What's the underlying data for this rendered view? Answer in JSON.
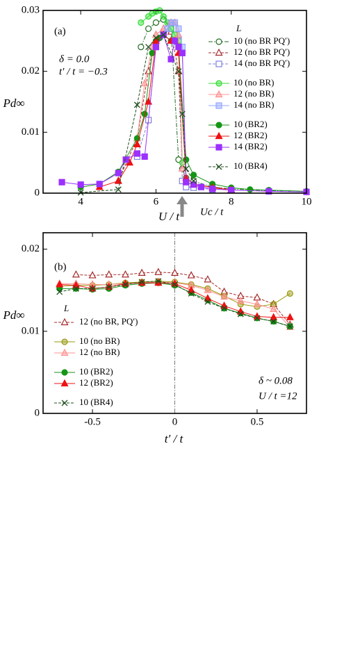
{
  "chart_data": [
    {
      "type": "line",
      "annotations": [
        "(a)",
        "δ = 0.0",
        "t′ / t = −0.3",
        "Uc / t"
      ],
      "x_label": "U / t",
      "y_label": "Pd∞",
      "legend_title": "L",
      "legend_position": "upper right",
      "xlim": [
        3,
        10
      ],
      "ylim": [
        0,
        0.03
      ],
      "xticks": [
        4,
        6,
        8,
        10
      ],
      "yticks": [
        0,
        0.01,
        0.02,
        0.03
      ],
      "series": [
        {
          "name": "10  (no BR PQ′)",
          "color": "#1f6b1f",
          "marker": "circle",
          "fill": "open",
          "dash": "dash-dot",
          "x": [
            5.6,
            5.8,
            6.0,
            6.2,
            6.4,
            6.6,
            6.7,
            6.8,
            7.0,
            7.5,
            8,
            9,
            10
          ],
          "values": [
            0.024,
            0.027,
            0.028,
            0.0285,
            0.027,
            0.0055,
            0.004,
            0.0025,
            0.002,
            0.001,
            0.0007,
            0.0004,
            0.0002
          ]
        },
        {
          "name": "12  (no BR PQ′)",
          "color": "#a52a2a",
          "marker": "triangle",
          "fill": "open",
          "dash": "dash",
          "x": [
            5,
            5.5,
            5.8,
            6.0,
            6.2,
            6.4,
            6.6,
            6.7,
            6.8,
            7.0,
            7.5,
            8
          ],
          "values": [
            0.002,
            0.009,
            0.02,
            0.026,
            0.027,
            0.0265,
            0.02,
            0.004,
            0.002,
            0.0015,
            0.001,
            0.0006
          ]
        },
        {
          "name": "14  (no BR PQ′)",
          "color": "#7f7fe0",
          "marker": "square",
          "fill": "open",
          "dash": "dash",
          "x": [
            5.5,
            5.8,
            6.0,
            6.2,
            6.4,
            6.5,
            6.6,
            6.7,
            6.8,
            7.0,
            7.5
          ],
          "values": [
            0.006,
            0.012,
            0.024,
            0.026,
            0.027,
            0.026,
            0.025,
            0.002,
            0.001,
            0.0009,
            0.0006
          ]
        },
        {
          "name": "10  (no BR)",
          "color": "#33dd33",
          "marker": "circle",
          "fill": "half",
          "dash": "solid",
          "x": [
            5.6,
            5.8,
            5.9,
            6.0,
            6.1,
            6.2,
            6.3,
            6.4,
            6.5,
            6.6,
            6.7
          ],
          "values": [
            0.028,
            0.029,
            0.0295,
            0.0298,
            0.03,
            0.029,
            0.028,
            0.027,
            0.026,
            0.025,
            0.005
          ]
        },
        {
          "name": "12  (no BR)",
          "color": "#ff9090",
          "marker": "triangle",
          "fill": "half",
          "dash": "solid",
          "x": [
            5.5,
            5.7,
            5.9,
            6.0,
            6.2,
            6.4,
            6.5,
            6.6,
            6.7
          ],
          "values": [
            0.009,
            0.018,
            0.024,
            0.026,
            0.027,
            0.028,
            0.028,
            0.026,
            0.004
          ]
        },
        {
          "name": "14  (no BR)",
          "color": "#92a5ff",
          "marker": "square",
          "fill": "half",
          "dash": "solid",
          "x": [
            6.2,
            6.3,
            6.4,
            6.5,
            6.6,
            6.7,
            6.8
          ],
          "values": [
            0.026,
            0.027,
            0.028,
            0.028,
            0.027,
            0.024,
            0.002
          ]
        },
        {
          "name": "10  (BR2)",
          "color": "#159615",
          "marker": "circle",
          "fill": "full",
          "dash": "solid",
          "x": [
            4,
            4.5,
            5,
            5.5,
            5.7,
            5.9,
            6.0,
            6.1,
            6.2,
            6.4,
            6.6,
            6.8,
            7.0,
            7.5,
            8,
            8.5,
            9,
            10
          ],
          "values": [
            0.001,
            0.0015,
            0.0035,
            0.009,
            0.013,
            0.023,
            0.025,
            0.0255,
            0.026,
            0.025,
            0.024,
            0.0055,
            0.003,
            0.0015,
            0.0009,
            0.0006,
            0.0005,
            0.0003
          ]
        },
        {
          "name": "12  (BR2)",
          "color": "#ee1111",
          "marker": "triangle",
          "fill": "full",
          "dash": "solid",
          "x": [
            4.5,
            5,
            5.3,
            5.5,
            5.8,
            6.0,
            6.2,
            6.4,
            6.5,
            6.6,
            6.8,
            7.0,
            7.5,
            8
          ],
          "values": [
            0.001,
            0.002,
            0.005,
            0.008,
            0.015,
            0.025,
            0.026,
            0.025,
            0.025,
            0.023,
            0.0025,
            0.0015,
            0.0009,
            0.0005
          ]
        },
        {
          "name": "14  (BR2)",
          "color": "#9b30ff",
          "marker": "square",
          "fill": "full",
          "dash": "solid",
          "x": [
            3.5,
            4,
            4.5,
            5,
            5.2,
            5.5,
            5.7,
            6.0,
            6.2,
            6.4,
            6.5,
            6.6,
            6.7,
            6.8,
            7.0,
            7.2,
            7.5,
            8,
            9,
            10
          ],
          "values": [
            0.0018,
            0.0014,
            0.0015,
            0.0033,
            0.0055,
            0.0065,
            0.006,
            0.024,
            0.026,
            0.022,
            0.025,
            0.024,
            0.023,
            0.0018,
            0.0014,
            0.001,
            0.0007,
            0.0005,
            0.0003,
            0.0002
          ]
        },
        {
          "name": "10  (BR4)",
          "color": "#1d4d1d",
          "marker": "x",
          "fill": "none",
          "dash": "dash",
          "x": [
            4,
            5,
            5.5,
            5.8,
            6.0,
            6.2,
            6.6,
            6.7,
            6.8,
            7.0
          ],
          "values": [
            0.0001,
            0.0006,
            0.0145,
            0.024,
            0.0255,
            0.026,
            0.02,
            0.013,
            0.004,
            0.002
          ]
        }
      ]
    },
    {
      "type": "line",
      "annotations": [
        "(b)",
        "δ ~ 0.08",
        "U / t =12"
      ],
      "x_label": "t′ / t",
      "y_label": "Pd∞",
      "legend_title": "L",
      "legend_position": "center left",
      "xlim": [
        -0.8,
        0.8
      ],
      "ylim": [
        0,
        0.022
      ],
      "xticks": [
        -0.5,
        0,
        0.5
      ],
      "yticks": [
        0,
        0.01,
        0.02
      ],
      "series": [
        {
          "name": "12  (no BR, PQ′)",
          "color": "#a52a2a",
          "marker": "triangle",
          "fill": "open",
          "dash": "dash",
          "x": [
            -0.6,
            -0.5,
            -0.4,
            -0.3,
            -0.2,
            -0.1,
            0,
            0.1,
            0.2,
            0.3,
            0.4,
            0.5,
            0.6,
            0.7
          ],
          "values": [
            0.0169,
            0.0168,
            0.0169,
            0.0169,
            0.0171,
            0.0172,
            0.0171,
            0.0168,
            0.0163,
            0.0148,
            0.0143,
            0.0141,
            0.0133,
            0.0108
          ]
        },
        {
          "name": "10  (no BR)",
          "color": "#9a9a10",
          "marker": "circle",
          "fill": "half",
          "dash": "solid",
          "x": [
            -0.7,
            -0.6,
            -0.5,
            -0.4,
            -0.3,
            -0.2,
            -0.1,
            0,
            0.1,
            0.2,
            0.3,
            0.4,
            0.5,
            0.6,
            0.7
          ],
          "values": [
            0.0155,
            0.0156,
            0.0156,
            0.0157,
            0.0159,
            0.016,
            0.0161,
            0.016,
            0.0157,
            0.0152,
            0.0143,
            0.0133,
            0.013,
            0.0133,
            0.0146
          ]
        },
        {
          "name": "12  (no BR)",
          "color": "#ff9090",
          "marker": "triangle",
          "fill": "half",
          "dash": "solid",
          "x": [
            -0.7,
            -0.6,
            -0.5,
            -0.4,
            -0.3,
            -0.2,
            -0.1,
            0,
            0.1,
            0.2,
            0.3,
            0.4,
            0.5,
            0.6,
            0.7
          ],
          "values": [
            0.0158,
            0.0158,
            0.0157,
            0.0157,
            0.0158,
            0.0159,
            0.016,
            0.0159,
            0.0156,
            0.015,
            0.0142,
            0.0137,
            0.0133,
            0.0127,
            0.0105
          ]
        },
        {
          "name": "10  (BR2)",
          "color": "#159615",
          "marker": "circle",
          "fill": "full",
          "dash": "solid",
          "x": [
            -0.7,
            -0.6,
            -0.5,
            -0.4,
            -0.3,
            -0.2,
            -0.1,
            0,
            0.1,
            0.2,
            0.3,
            0.4,
            0.5,
            0.6,
            0.7
          ],
          "values": [
            0.0152,
            0.0152,
            0.0151,
            0.0152,
            0.0156,
            0.0158,
            0.0159,
            0.0156,
            0.0147,
            0.0138,
            0.0128,
            0.0122,
            0.0116,
            0.0112,
            0.0106
          ]
        },
        {
          "name": "12  (BR2)",
          "color": "#ee1111",
          "marker": "triangle",
          "fill": "full",
          "dash": "solid",
          "x": [
            -0.7,
            -0.6,
            -0.5,
            -0.4,
            -0.3,
            -0.2,
            -0.1,
            0,
            0.1,
            0.2,
            0.3,
            0.4,
            0.5,
            0.6,
            0.7
          ],
          "values": [
            0.0157,
            0.0156,
            0.0152,
            0.0154,
            0.0158,
            0.0159,
            0.0159,
            0.0158,
            0.015,
            0.014,
            0.0131,
            0.0124,
            0.0118,
            0.0117,
            0.0117
          ]
        },
        {
          "name": "10  (BR4)",
          "color": "#1d4d1d",
          "marker": "x",
          "fill": "none",
          "dash": "dash",
          "x": [
            -0.7,
            -0.6,
            -0.5,
            -0.4,
            -0.3,
            -0.2,
            -0.1,
            0,
            0.1,
            0.2,
            0.3,
            0.4,
            0.5,
            0.6,
            0.7
          ],
          "values": [
            0.0148,
            0.0152,
            0.0152,
            0.0154,
            0.0157,
            0.016,
            0.0161,
            0.0157,
            0.0146,
            0.0136,
            0.0128,
            0.0121,
            0.0116,
            0.0112,
            0.0106
          ]
        }
      ]
    }
  ]
}
